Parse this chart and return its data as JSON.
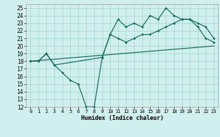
{
  "xlabel": "Humidex (Indice chaleur)",
  "bg_color": "#cff0ee",
  "grid_color": "#aad8cc",
  "line_color": "#1a6b5a",
  "xlim": [
    -0.5,
    23.5
  ],
  "ylim": [
    12,
    25.5
  ],
  "xticks": [
    0,
    1,
    2,
    3,
    4,
    5,
    6,
    7,
    8,
    9,
    10,
    11,
    12,
    13,
    14,
    15,
    16,
    17,
    18,
    19,
    20,
    21,
    22,
    23
  ],
  "yticks": [
    12,
    13,
    14,
    15,
    16,
    17,
    18,
    19,
    20,
    21,
    22,
    23,
    24,
    25
  ],
  "line1_x": [
    0,
    1,
    2,
    3,
    4,
    5,
    6,
    7,
    8,
    9,
    10,
    11,
    12,
    13,
    14,
    15,
    16,
    17,
    18,
    19,
    20,
    21,
    22,
    23
  ],
  "line1_y": [
    18,
    18,
    19,
    17.5,
    16.5,
    15.5,
    15,
    12,
    12,
    18.5,
    21.5,
    23.5,
    22.5,
    23,
    22.5,
    24,
    23.5,
    25,
    24,
    23.5,
    23.5,
    22.5,
    21,
    20.5
  ],
  "line2_x": [
    0,
    1,
    2,
    3,
    9,
    10,
    11,
    12,
    13,
    14,
    15,
    16,
    17,
    18,
    19,
    20,
    21,
    22,
    23
  ],
  "line2_y": [
    18,
    18,
    19,
    17.5,
    18.5,
    21.5,
    21,
    20.5,
    21,
    21.5,
    21.5,
    22,
    22.5,
    23,
    23.5,
    23.5,
    23,
    22.5,
    21
  ],
  "line3_x": [
    0,
    23
  ],
  "line3_y": [
    18,
    20
  ],
  "xlabel_fontsize": 6,
  "tick_fontsize": 5,
  "ytick_fontsize": 5.5
}
